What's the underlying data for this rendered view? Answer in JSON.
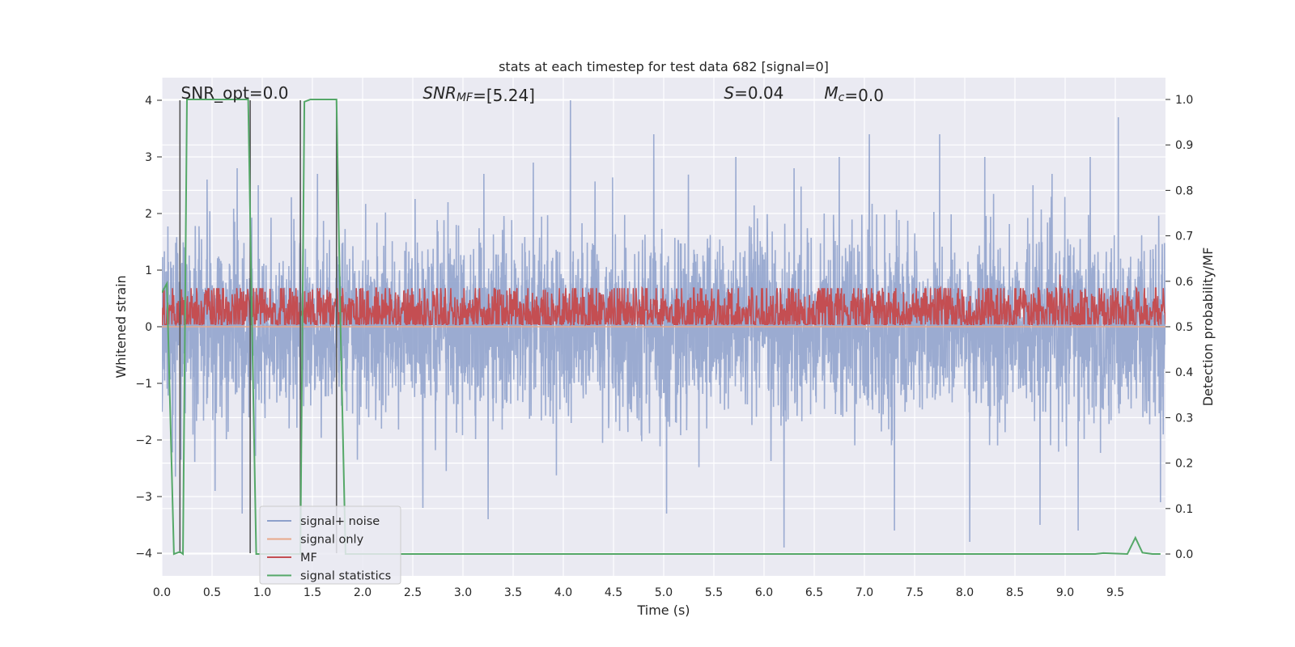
{
  "chart_data": {
    "type": "line",
    "title": "stats at each timestep for test data 682 [signal=0]",
    "xlabel": "Time (s)",
    "ylabel": "Whitened strain",
    "y2label": "Detection probability/MF",
    "xlim": [
      0.0,
      10.0
    ],
    "ylim": [
      -4.4,
      4.4
    ],
    "y2lim": [
      -0.048,
      1.048
    ],
    "xticks": [
      0.0,
      0.5,
      1.0,
      1.5,
      2.0,
      2.5,
      3.0,
      3.5,
      4.0,
      4.5,
      5.0,
      5.5,
      6.0,
      6.5,
      7.0,
      7.5,
      8.0,
      8.5,
      9.0,
      9.5
    ],
    "xtick_labels": [
      "0.0",
      "0.5",
      "1.0",
      "1.5",
      "2.0",
      "2.5",
      "3.0",
      "3.5",
      "4.0",
      "4.5",
      "5.0",
      "5.5",
      "6.0",
      "6.5",
      "7.0",
      "7.5",
      "8.0",
      "8.5",
      "9.0",
      "9.5"
    ],
    "yticks": [
      -4,
      -3,
      -2,
      -1,
      0,
      1,
      2,
      3,
      4
    ],
    "ytick_labels": [
      "−4",
      "−3",
      "−2",
      "−1",
      "0",
      "1",
      "2",
      "3",
      "4"
    ],
    "y2ticks": [
      0.0,
      0.1,
      0.2,
      0.3,
      0.4,
      0.5,
      0.6,
      0.7,
      0.8,
      0.9,
      1.0
    ],
    "y2tick_labels": [
      "0.0",
      "0.1",
      "0.2",
      "0.3",
      "0.4",
      "0.5",
      "0.6",
      "0.7",
      "0.8",
      "0.9",
      "1.0"
    ],
    "grid": true,
    "legend_position": "lower-left",
    "annotations": [
      {
        "parts": [
          {
            "t": "SNR_opt=0.0",
            "style": "normal"
          }
        ],
        "x": 0.19
      },
      {
        "parts": [
          {
            "t": "SNR",
            "style": "italic"
          },
          {
            "t": "MF",
            "style": "italic-sub"
          },
          {
            "t": "=[5.24]",
            "style": "normal"
          }
        ],
        "x": 2.6
      },
      {
        "parts": [
          {
            "t": "S",
            "style": "italic"
          },
          {
            "t": "=0.04",
            "style": "normal"
          }
        ],
        "x": 5.6
      },
      {
        "parts": [
          {
            "t": "M",
            "style": "italic"
          },
          {
            "t": "c",
            "style": "italic-sub"
          },
          {
            "t": "=0.0",
            "style": "normal"
          }
        ],
        "x": 6.6
      }
    ],
    "colors": {
      "noise": "#8da0cb",
      "signal_only": "#e8a88a",
      "mf": "#c44e52",
      "stats": "#55a868",
      "vlines": "#555555",
      "background": "#eaeaf2",
      "grid": "#ffffff"
    },
    "series": [
      {
        "name": "signal+ noise",
        "axis": "left",
        "kind": "dense-noise",
        "amplitude_typical": 1.5,
        "peaks": [
          [
            0.45,
            2.6
          ],
          [
            0.75,
            2.8
          ],
          [
            0.96,
            2.5
          ],
          [
            1.55,
            2.7
          ],
          [
            2.85,
            2.2
          ],
          [
            3.7,
            2.9
          ],
          [
            4.07,
            4.0
          ],
          [
            4.9,
            3.4
          ],
          [
            5.72,
            3.0
          ],
          [
            6.3,
            2.8
          ],
          [
            6.6,
            2.0
          ],
          [
            6.75,
            3.0
          ],
          [
            7.05,
            3.4
          ],
          [
            7.75,
            3.4
          ],
          [
            8.2,
            3.0
          ],
          [
            8.68,
            2.5
          ],
          [
            9.25,
            3.0
          ],
          [
            9.53,
            3.7
          ]
        ],
        "troughs": [
          [
            0.53,
            -2.9
          ],
          [
            0.8,
            -3.3
          ],
          [
            2.6,
            -3.2
          ],
          [
            3.25,
            -3.4
          ],
          [
            5.03,
            -3.3
          ],
          [
            6.2,
            -3.9
          ],
          [
            7.3,
            -3.6
          ],
          [
            8.05,
            -3.8
          ],
          [
            8.75,
            -3.5
          ],
          [
            9.13,
            -3.6
          ],
          [
            9.95,
            -3.1
          ]
        ]
      },
      {
        "name": "signal only",
        "axis": "left",
        "x": [
          0.0,
          10.0
        ],
        "y": [
          0.0,
          0.0
        ]
      },
      {
        "name": "MF",
        "axis": "right",
        "kind": "dense-noise",
        "baseline": 0.53,
        "amplitude_typical": 0.035,
        "spikes": [
          [
            8.95,
            0.615
          ]
        ]
      },
      {
        "name": "signal statistics",
        "axis": "right",
        "x": [
          0.0,
          0.05,
          0.12,
          0.18,
          0.21,
          0.25,
          0.3,
          0.5,
          0.86,
          0.9,
          0.94,
          1.38,
          1.42,
          1.48,
          1.74,
          1.78,
          1.83,
          2.0,
          9.3,
          9.38,
          9.62,
          9.7,
          9.77,
          9.87,
          9.95
        ],
        "y": [
          0.575,
          0.595,
          0.0,
          0.005,
          0.0,
          1.0,
          1.0,
          1.0,
          1.0,
          0.48,
          0.0,
          0.0,
          0.995,
          1.0,
          1.0,
          0.5,
          0.0,
          0.0,
          0.0,
          0.002,
          0.0,
          0.036,
          0.003,
          0.0,
          0.0
        ]
      }
    ],
    "vlines": [
      0.18,
      0.88,
      1.38,
      1.74
    ]
  }
}
